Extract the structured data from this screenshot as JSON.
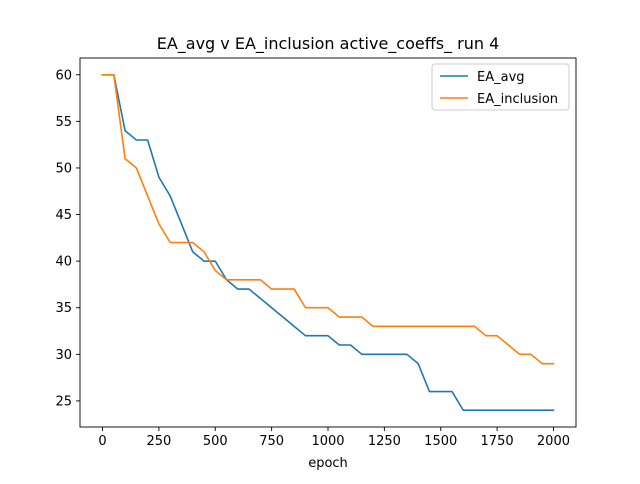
{
  "chart_data": {
    "type": "line",
    "title": "EA_avg v EA_inclusion active_coeffs_ run 4",
    "xlabel": "epoch",
    "ylabel": "",
    "xlim": [
      -100,
      2100
    ],
    "ylim": [
      22.2,
      61.8
    ],
    "xticks": [
      0,
      250,
      500,
      750,
      1000,
      1250,
      1500,
      1750,
      2000
    ],
    "yticks": [
      25,
      30,
      35,
      40,
      45,
      50,
      55,
      60
    ],
    "grid": false,
    "legend_position": "top-right",
    "series": [
      {
        "name": "EA_avg",
        "color": "#1f77b4",
        "x": [
          0,
          50,
          100,
          150,
          200,
          250,
          300,
          350,
          400,
          450,
          500,
          550,
          600,
          650,
          700,
          750,
          800,
          850,
          900,
          950,
          1000,
          1050,
          1100,
          1150,
          1200,
          1250,
          1300,
          1350,
          1400,
          1450,
          1500,
          1550,
          1600,
          1650,
          1700,
          1750,
          1800,
          1850,
          1900,
          1950,
          2000
        ],
        "values": [
          60,
          60,
          54,
          53,
          53,
          49,
          47,
          44,
          41,
          40,
          40,
          38,
          37,
          37,
          36,
          35,
          34,
          33,
          32,
          32,
          32,
          31,
          31,
          30,
          30,
          30,
          30,
          30,
          29,
          26,
          26,
          26,
          24,
          24,
          24,
          24,
          24,
          24,
          24,
          24,
          24
        ]
      },
      {
        "name": "EA_inclusion",
        "color": "#ff7f0e",
        "x": [
          0,
          50,
          100,
          150,
          200,
          250,
          300,
          350,
          400,
          450,
          500,
          550,
          600,
          650,
          700,
          750,
          800,
          850,
          900,
          950,
          1000,
          1050,
          1100,
          1150,
          1200,
          1250,
          1300,
          1350,
          1400,
          1450,
          1500,
          1550,
          1600,
          1650,
          1700,
          1750,
          1800,
          1850,
          1900,
          1950,
          2000
        ],
        "values": [
          60,
          60,
          51,
          50,
          47,
          44,
          42,
          42,
          42,
          41,
          39,
          38,
          38,
          38,
          38,
          37,
          37,
          37,
          35,
          35,
          35,
          34,
          34,
          34,
          33,
          33,
          33,
          33,
          33,
          33,
          33,
          33,
          33,
          33,
          32,
          32,
          31,
          30,
          30,
          29,
          29
        ]
      }
    ]
  }
}
